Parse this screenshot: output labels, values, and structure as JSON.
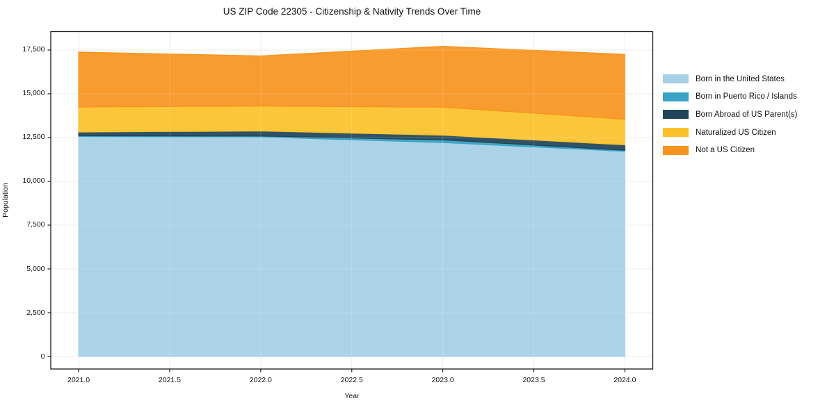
{
  "title": "US ZIP Code 22305 - Citizenship & Nativity Trends Over Time",
  "chart_data": {
    "type": "area",
    "stacked": true,
    "title": "US ZIP Code 22305 - Citizenship & Nativity Trends Over Time",
    "xlabel": "Year",
    "ylabel": "Population",
    "x": [
      2021,
      2022,
      2023,
      2024
    ],
    "series": [
      {
        "name": "Born in the United States",
        "color": "#a5cfe5",
        "values": [
          12560,
          12540,
          12220,
          11720
        ]
      },
      {
        "name": "Born in Puerto Rico / Islands",
        "color": "#38a3c4",
        "values": [
          50,
          50,
          150,
          60
        ]
      },
      {
        "name": "Born Abroad of US Parent(s)",
        "color": "#20455a",
        "values": [
          210,
          290,
          270,
          310
        ]
      },
      {
        "name": "Naturalized US Citizen",
        "color": "#fcc22c",
        "values": [
          1430,
          1420,
          1600,
          1460
        ]
      },
      {
        "name": "Not a US Citizen",
        "color": "#f7941f",
        "values": [
          3130,
          2860,
          3470,
          3700
        ]
      }
    ],
    "stack_totals": [
      17380,
      17160,
      17710,
      17250
    ],
    "x_ticks": [
      2021.0,
      2021.5,
      2022.0,
      2022.5,
      2023.0,
      2023.5,
      2024.0
    ],
    "x_tick_labels": [
      "2021.0",
      "2021.5",
      "2022.0",
      "2022.5",
      "2023.0",
      "2023.5",
      "2024.0"
    ],
    "y_ticks": [
      0,
      2500,
      5000,
      7500,
      10000,
      12500,
      15000,
      17500
    ],
    "y_tick_labels": [
      "0",
      "2,500",
      "5,000",
      "7,500",
      "10,000",
      "12,500",
      "15,000",
      "17,500"
    ],
    "xlim": [
      2020.847,
      2024.153
    ],
    "ylim": [
      -714,
      18551
    ],
    "grid": true,
    "grid_color": "#e9e9e9",
    "frame_color": "#1a1a1a",
    "background_color": "#ffffff",
    "legend_position": "right-outside-top"
  }
}
